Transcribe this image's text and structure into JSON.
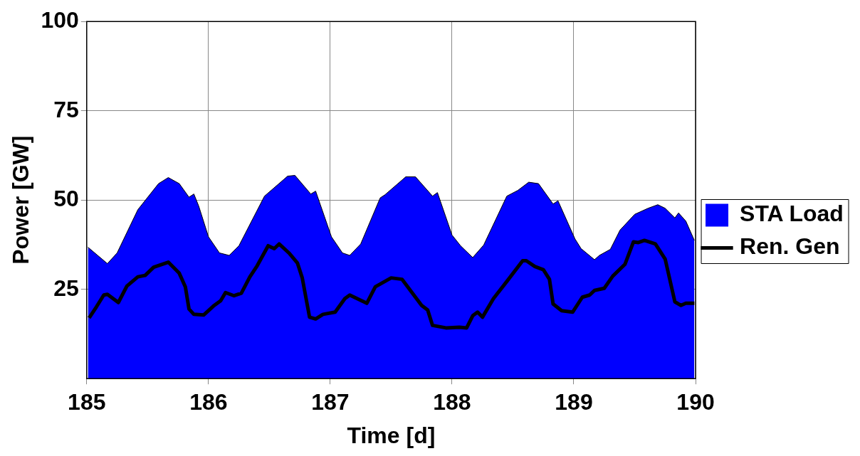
{
  "chart_data": {
    "type": "area",
    "xlabel": "Time [d]",
    "ylabel": "Power [GW]",
    "xlim": [
      185,
      190
    ],
    "xticks": [
      185,
      186,
      187,
      188,
      189,
      190
    ],
    "ylim": [
      0,
      100
    ],
    "yticks": [
      25,
      50,
      75,
      100
    ],
    "grid": true,
    "legend": "right",
    "series": [
      {
        "name": "STA Load",
        "color": "#0000ff",
        "x": [
          185.01,
          185.17,
          185.25,
          185.42,
          185.59,
          185.67,
          185.76,
          185.84,
          185.88,
          185.92,
          186.0,
          186.09,
          186.17,
          186.25,
          186.46,
          186.65,
          186.71,
          186.84,
          186.88,
          187.01,
          187.1,
          187.16,
          187.25,
          187.41,
          187.45,
          187.62,
          187.7,
          187.84,
          187.88,
          188.0,
          188.07,
          188.17,
          188.26,
          188.45,
          188.54,
          188.63,
          188.71,
          188.83,
          188.87,
          189.01,
          189.06,
          189.17,
          189.21,
          189.3,
          189.38,
          189.5,
          189.61,
          189.69,
          189.75,
          189.83,
          189.86,
          189.92,
          189.99
        ],
        "values": [
          36.8,
          32.2,
          35.2,
          47.3,
          54.6,
          56.3,
          54.6,
          50.8,
          51.7,
          48.3,
          39.7,
          35.2,
          34.5,
          37.2,
          51.1,
          56.7,
          56.9,
          51.7,
          52.5,
          39.7,
          35.2,
          34.5,
          37.7,
          50.6,
          51.5,
          56.5,
          56.5,
          51.1,
          52.1,
          40.2,
          37.2,
          33.9,
          37.4,
          51.1,
          52.7,
          55.0,
          54.6,
          48.9,
          49.8,
          39.1,
          36.4,
          33.3,
          34.5,
          36.2,
          41.6,
          46.0,
          47.7,
          48.7,
          47.7,
          45.0,
          46.4,
          44.1,
          38.7
        ]
      },
      {
        "name": "Ren. Gen",
        "type": "line",
        "color": "#000000",
        "x": [
          185.02,
          185.08,
          185.14,
          185.17,
          185.26,
          185.33,
          185.42,
          185.48,
          185.55,
          185.67,
          185.76,
          185.81,
          185.84,
          185.88,
          185.96,
          186.04,
          186.1,
          186.14,
          186.21,
          186.27,
          186.34,
          186.4,
          186.49,
          186.54,
          186.58,
          186.66,
          186.73,
          186.77,
          186.83,
          186.88,
          186.94,
          187.04,
          187.12,
          187.16,
          187.3,
          187.37,
          187.5,
          187.59,
          187.75,
          187.8,
          187.84,
          187.95,
          188.06,
          188.12,
          188.17,
          188.21,
          188.25,
          188.34,
          188.45,
          188.58,
          188.61,
          188.68,
          188.75,
          188.8,
          188.83,
          188.9,
          188.99,
          189.07,
          189.13,
          189.17,
          189.25,
          189.32,
          189.42,
          189.49,
          189.53,
          189.58,
          189.67,
          189.75,
          189.83,
          189.88,
          189.92,
          189.99
        ],
        "values": [
          17.0,
          20.1,
          23.4,
          23.6,
          21.3,
          25.9,
          28.5,
          28.9,
          31.2,
          32.6,
          29.5,
          25.7,
          19.5,
          18.0,
          17.8,
          20.3,
          21.8,
          24.1,
          23.2,
          23.9,
          28.5,
          31.6,
          37.2,
          36.4,
          37.7,
          35.2,
          32.4,
          28.2,
          17.2,
          16.7,
          18.0,
          18.6,
          22.4,
          23.4,
          21.1,
          25.7,
          28.2,
          27.8,
          20.5,
          19.2,
          14.9,
          14.2,
          14.4,
          14.2,
          17.6,
          18.6,
          17.2,
          22.4,
          27.2,
          33.0,
          33.0,
          31.4,
          30.5,
          27.8,
          20.9,
          19.0,
          18.6,
          22.8,
          23.4,
          24.7,
          25.3,
          28.7,
          32.0,
          38.3,
          38.1,
          38.7,
          37.7,
          33.5,
          21.5,
          20.5,
          21.1,
          21.1
        ]
      }
    ]
  }
}
